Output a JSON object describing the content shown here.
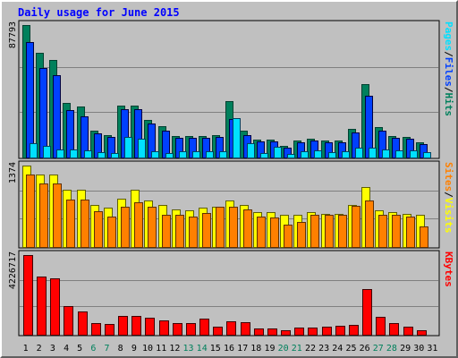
{
  "colors": {
    "background": "#c0c0c0",
    "title": "#0000ff",
    "hits_fill": "#00805c",
    "hits_edge": "#004030",
    "files_fill": "#0040ff",
    "files_edge": "#000040",
    "pages_fill": "#00e0ff",
    "pages_edge": "#004060",
    "visits_fill": "#ffff00",
    "visits_edge": "#606000",
    "sites_fill": "#ff8000",
    "sites_edge": "#603000",
    "kbytes_fill": "#ff0000",
    "kbytes_edge": "#400000",
    "weekday_label": "#000000",
    "weekend_label": "#00805c"
  },
  "chart_data": {
    "type": "bar",
    "title": "Daily usage for June 2015",
    "grid": true,
    "legend_placement": "right",
    "categories": [
      "1",
      "2",
      "3",
      "4",
      "5",
      "6",
      "7",
      "8",
      "9",
      "10",
      "11",
      "12",
      "13",
      "14",
      "15",
      "16",
      "17",
      "18",
      "19",
      "20",
      "21",
      "22",
      "23",
      "24",
      "25",
      "26",
      "27",
      "28",
      "29",
      "30",
      "31"
    ],
    "weekend_days": [
      "6",
      "7",
      "13",
      "14",
      "20",
      "21",
      "27",
      "28"
    ],
    "panels": [
      {
        "name": "hits-files-pages",
        "ylabel_parts": [
          "Pages",
          "/",
          "Files",
          "/",
          "Hits"
        ],
        "ylabel_colors": [
          "#00e0ff",
          "#000000",
          "#0040ff",
          "#000000",
          "#00805c"
        ],
        "max_label": "87793",
        "ymax": 87793,
        "series": [
          {
            "name": "Hits",
            "color_key": "hits",
            "values": [
              87793,
              69500,
              64900,
              36300,
              33600,
              17800,
              15100,
              34200,
              34200,
              25000,
              20500,
              14200,
              14200,
              14200,
              15100,
              37600,
              17600,
              11700,
              11700,
              7600,
              11100,
              12300,
              11400,
              11500,
              18800,
              48900,
              20100,
              14400,
              13700,
              9800
            ]
          },
          {
            "name": "Files",
            "color_key": "files",
            "values": [
              76400,
              59500,
              54600,
              31600,
              27000,
              16100,
              13400,
              32000,
              31900,
              22500,
              17500,
              12800,
              13200,
              12900,
              13500,
              25300,
              15000,
              10700,
              10400,
              6400,
              10100,
              11400,
              10000,
              10300,
              16800,
              40700,
              17500,
              13300,
              12500,
              8800
            ]
          },
          {
            "name": "Pages",
            "color_key": "pages",
            "values": [
              9300,
              7600,
              5500,
              5100,
              4600,
              3300,
              3200,
              13900,
              12300,
              3900,
              3000,
              4200,
              4200,
              4200,
              4300,
              26000,
              9200,
              3000,
              7200,
              2500,
              4300,
              4800,
              3400,
              4000,
              6600,
              6500,
              5200,
              4800,
              4800,
              3300
            ]
          }
        ]
      },
      {
        "name": "visits-sites",
        "ylabel_parts": [
          "Sites",
          "/",
          "Visits"
        ],
        "ylabel_colors": [
          "#ff8000",
          "#000000",
          "#ffff00"
        ],
        "max_label": "1374",
        "ymax": 1374,
        "series": [
          {
            "name": "Visits",
            "color_key": "visits",
            "values": [
              1374,
              1220,
              1220,
              960,
              960,
              710,
              660,
              810,
              960,
              780,
              710,
              640,
              620,
              660,
              680,
              780,
              710,
              590,
              590,
              540,
              540,
              590,
              560,
              560,
              710,
              1010,
              620,
              590,
              560,
              540
            ]
          },
          {
            "name": "Sites",
            "color_key": "sites",
            "values": [
              1220,
              1070,
              1070,
              800,
              800,
              610,
              520,
              680,
              750,
              680,
              550,
              550,
              520,
              570,
              680,
              680,
              640,
              510,
              500,
              380,
              420,
              540,
              540,
              540,
              700,
              790,
              550,
              550,
              520,
              340
            ]
          }
        ]
      },
      {
        "name": "kbytes",
        "ylabel_parts": [
          "KBytes"
        ],
        "ylabel_colors": [
          "#ff0000"
        ],
        "max_label": "4226717",
        "ymax": 4226717,
        "series": [
          {
            "name": "KBytes",
            "color_key": "kbytes",
            "values": [
              4226717,
              3100000,
              3000000,
              1500000,
              1250000,
              600000,
              550000,
              1000000,
              1000000,
              900000,
              780000,
              600000,
              600000,
              850000,
              430000,
              700000,
              680000,
              320000,
              330000,
              260000,
              380000,
              380000,
              440000,
              460000,
              510000,
              2420000,
              950000,
              640000,
              430000,
              250000
            ]
          }
        ]
      }
    ]
  }
}
